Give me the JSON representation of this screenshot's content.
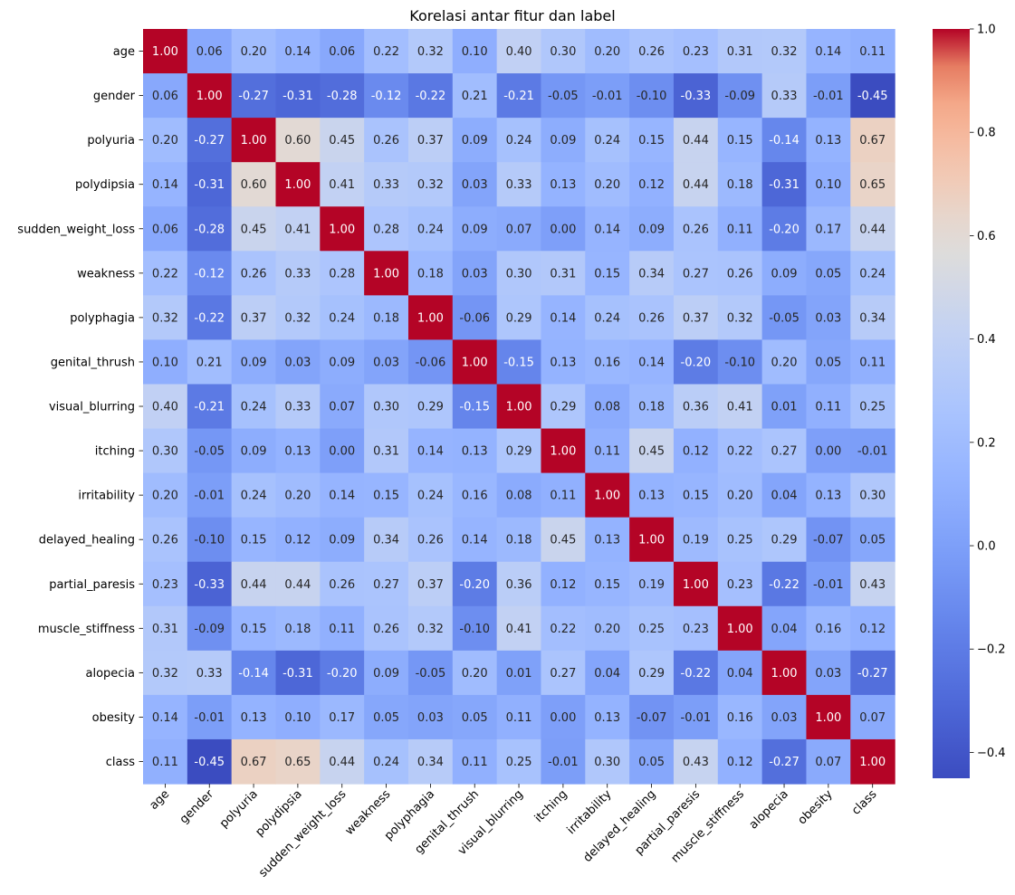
{
  "chart_data": {
    "type": "heatmap",
    "title": "Korelasi antar fitur dan label",
    "xlabel": "",
    "ylabel": "",
    "colormap": "coolwarm",
    "vmin": -0.45,
    "vmax": 1.0,
    "labels": [
      "age",
      "gender",
      "polyuria",
      "polydipsia",
      "sudden_weight_loss",
      "weakness",
      "polyphagia",
      "genital_thrush",
      "visual_blurring",
      "itching",
      "irritability",
      "delayed_healing",
      "partial_paresis",
      "muscle_stiffness",
      "alopecia",
      "obesity",
      "class"
    ],
    "matrix": [
      [
        1.0,
        0.06,
        0.2,
        0.14,
        0.06,
        0.22,
        0.32,
        0.1,
        0.4,
        0.3,
        0.2,
        0.26,
        0.23,
        0.31,
        0.32,
        0.14,
        0.11
      ],
      [
        0.06,
        1.0,
        -0.27,
        -0.31,
        -0.28,
        -0.12,
        -0.22,
        0.21,
        -0.21,
        -0.05,
        -0.01,
        -0.1,
        -0.33,
        -0.09,
        0.33,
        -0.01,
        -0.45
      ],
      [
        0.2,
        -0.27,
        1.0,
        0.6,
        0.45,
        0.26,
        0.37,
        0.09,
        0.24,
        0.09,
        0.24,
        0.15,
        0.44,
        0.15,
        -0.14,
        0.13,
        0.67
      ],
      [
        0.14,
        -0.31,
        0.6,
        1.0,
        0.41,
        0.33,
        0.32,
        0.03,
        0.33,
        0.13,
        0.2,
        0.12,
        0.44,
        0.18,
        -0.31,
        0.1,
        0.65
      ],
      [
        0.06,
        -0.28,
        0.45,
        0.41,
        1.0,
        0.28,
        0.24,
        0.09,
        0.07,
        -0.0,
        0.14,
        0.09,
        0.26,
        0.11,
        -0.2,
        0.17,
        0.44
      ],
      [
        0.22,
        -0.12,
        0.26,
        0.33,
        0.28,
        1.0,
        0.18,
        0.03,
        0.3,
        0.31,
        0.15,
        0.34,
        0.27,
        0.26,
        0.09,
        0.05,
        0.24
      ],
      [
        0.32,
        -0.22,
        0.37,
        0.32,
        0.24,
        0.18,
        1.0,
        -0.06,
        0.29,
        0.14,
        0.24,
        0.26,
        0.37,
        0.32,
        -0.05,
        0.03,
        0.34
      ],
      [
        0.1,
        0.21,
        0.09,
        0.03,
        0.09,
        0.03,
        -0.06,
        1.0,
        -0.15,
        0.13,
        0.16,
        0.14,
        -0.2,
        -0.1,
        0.2,
        0.05,
        0.11
      ],
      [
        0.4,
        -0.21,
        0.24,
        0.33,
        0.07,
        0.3,
        0.29,
        -0.15,
        1.0,
        0.29,
        0.08,
        0.18,
        0.36,
        0.41,
        0.01,
        0.11,
        0.25
      ],
      [
        0.3,
        -0.05,
        0.09,
        0.13,
        -0.0,
        0.31,
        0.14,
        0.13,
        0.29,
        1.0,
        0.11,
        0.45,
        0.12,
        0.22,
        0.27,
        0.0,
        -0.01
      ],
      [
        0.2,
        -0.01,
        0.24,
        0.2,
        0.14,
        0.15,
        0.24,
        0.16,
        0.08,
        0.11,
        1.0,
        0.13,
        0.15,
        0.2,
        0.04,
        0.13,
        0.3
      ],
      [
        0.26,
        -0.1,
        0.15,
        0.12,
        0.09,
        0.34,
        0.26,
        0.14,
        0.18,
        0.45,
        0.13,
        1.0,
        0.19,
        0.25,
        0.29,
        -0.07,
        0.05
      ],
      [
        0.23,
        -0.33,
        0.44,
        0.44,
        0.26,
        0.27,
        0.37,
        -0.2,
        0.36,
        0.12,
        0.15,
        0.19,
        1.0,
        0.23,
        -0.22,
        -0.01,
        0.43
      ],
      [
        0.31,
        -0.09,
        0.15,
        0.18,
        0.11,
        0.26,
        0.32,
        -0.1,
        0.41,
        0.22,
        0.2,
        0.25,
        0.23,
        1.0,
        0.04,
        0.16,
        0.12
      ],
      [
        0.32,
        0.33,
        -0.14,
        -0.31,
        -0.2,
        0.09,
        -0.05,
        0.2,
        0.01,
        0.27,
        0.04,
        0.29,
        -0.22,
        0.04,
        1.0,
        0.03,
        -0.27
      ],
      [
        0.14,
        -0.01,
        0.13,
        0.1,
        0.17,
        0.05,
        0.03,
        0.05,
        0.11,
        0.0,
        0.13,
        -0.07,
        -0.01,
        0.16,
        0.03,
        1.0,
        0.07
      ],
      [
        0.11,
        -0.45,
        0.67,
        0.65,
        0.44,
        0.24,
        0.34,
        0.11,
        0.25,
        -0.01,
        0.3,
        0.05,
        0.43,
        0.12,
        -0.27,
        0.07,
        1.0
      ]
    ],
    "value_format": "2 decimals",
    "colorbar": {
      "ticks": [
        1.0,
        0.8,
        0.6,
        0.4,
        0.2,
        0.0,
        -0.2,
        -0.4
      ],
      "tick_labels": [
        "1.0",
        "0.8",
        "0.6",
        "0.4",
        "0.2",
        "0.0",
        "−0.2",
        "−0.4"
      ]
    }
  }
}
